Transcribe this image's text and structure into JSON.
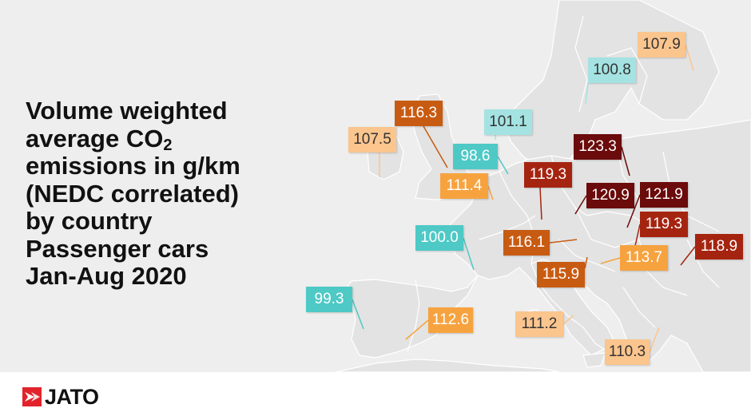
{
  "title": {
    "line1": "Volume weighted",
    "line2_prefix": "average CO",
    "line2_sub": "2",
    "line3": "emissions in g/km",
    "line4": "(NEDC correlated)",
    "line5": "by country",
    "line6": "Passenger cars",
    "line7": "Jan-Aug 2020"
  },
  "brand": {
    "name": "JATO",
    "color": "#e3222b"
  },
  "map_data": {
    "unit": "g/km",
    "color_scale": {
      "very_low": "#4ec9c6",
      "low": "#a4e3e2",
      "lower_mid": "#fbc58e",
      "mid": "#f6a33f",
      "upper_mid": "#c85b12",
      "high": "#a52410",
      "very_high": "#6b0b0b"
    },
    "values": [
      {
        "value": "107.9",
        "bin": "lower_mid"
      },
      {
        "value": "100.8",
        "bin": "low"
      },
      {
        "value": "116.3",
        "bin": "upper_mid"
      },
      {
        "value": "101.1",
        "bin": "low"
      },
      {
        "value": "107.5",
        "bin": "lower_mid"
      },
      {
        "value": "98.6",
        "bin": "very_low"
      },
      {
        "value": "123.3",
        "bin": "very_high"
      },
      {
        "value": "119.3",
        "bin": "high"
      },
      {
        "value": "111.4",
        "bin": "mid"
      },
      {
        "value": "120.9",
        "bin": "very_high"
      },
      {
        "value": "121.9",
        "bin": "very_high"
      },
      {
        "value": "119.3",
        "bin": "high"
      },
      {
        "value": "100.0",
        "bin": "very_low"
      },
      {
        "value": "116.1",
        "bin": "upper_mid"
      },
      {
        "value": "113.7",
        "bin": "mid"
      },
      {
        "value": "118.9",
        "bin": "high"
      },
      {
        "value": "115.9",
        "bin": "upper_mid"
      },
      {
        "value": "99.3",
        "bin": "very_low"
      },
      {
        "value": "112.6",
        "bin": "mid"
      },
      {
        "value": "111.2",
        "bin": "lower_mid"
      },
      {
        "value": "110.3",
        "bin": "lower_mid"
      }
    ]
  }
}
